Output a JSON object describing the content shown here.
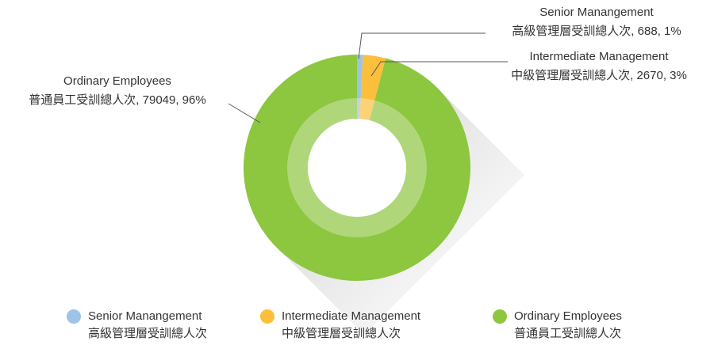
{
  "chart_data": {
    "type": "donut",
    "categories": [
      "Senior Manangement",
      "Intermediate Management",
      "Ordinary Employees"
    ],
    "subcategories": [
      "高級管理層受訓總人次",
      "中級管理層受訓總人次",
      "普通員工受訓總人次"
    ],
    "values": [
      688,
      2670,
      79049
    ],
    "value_labels": [
      "高級管理層受訓總人次, 688, 1%",
      "中級管理層受訓總人次, 2670, 3%",
      "普通員工受訓總人次, 79049, 96%"
    ],
    "colors": [
      "#9dc3e6",
      "#fbbf3c",
      "#8dc63f"
    ]
  }
}
